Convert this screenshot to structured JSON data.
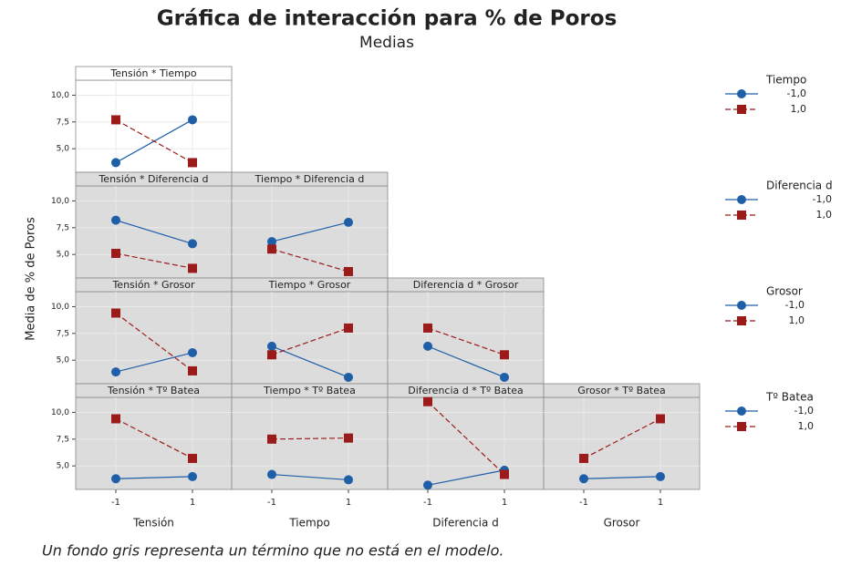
{
  "title": "Gráfica de interacción para % de Poros",
  "subtitle": "Medias",
  "y_label": "Media de % de Poros",
  "footnote": "Un fondo gris representa un término que no está en el modelo.",
  "chart_data": [
    {
      "type": "line",
      "title": "Tensión * Tiempo",
      "background": "#ffffff",
      "legend_title": "Tiempo",
      "categories": [
        "-1",
        "1"
      ],
      "series": [
        {
          "name": "-1,0",
          "color": "#1f5fa8",
          "values": [
            3.7,
            7.7
          ]
        },
        {
          "name": "1,0",
          "color": "#9b1b1b",
          "values": [
            7.7,
            3.7
          ]
        }
      ],
      "ylim": [
        2.8,
        11.4
      ],
      "yticks": [
        {
          "value": 5,
          "label": "5,0"
        },
        {
          "value": 7.5,
          "label": "7,5"
        },
        {
          "value": 10,
          "label": "10,0"
        }
      ]
    },
    {
      "type": "line",
      "title": "Tensión * Diferencia d",
      "background": "#dcdcdc",
      "legend_title": "Diferencia d",
      "categories": [
        "-1",
        "1"
      ],
      "series": [
        {
          "name": "-1,0",
          "color": "#1f5fa8",
          "values": [
            8.2,
            6.0
          ]
        },
        {
          "name": "1,0",
          "color": "#9b1b1b",
          "values": [
            5.1,
            3.7
          ]
        }
      ],
      "ylim": [
        2.8,
        11.4
      ],
      "yticks": [
        {
          "value": 5,
          "label": "5,0"
        },
        {
          "value": 7.5,
          "label": "7,5"
        },
        {
          "value": 10,
          "label": "10,0"
        }
      ]
    },
    {
      "type": "line",
      "title": "Tiempo * Diferencia d",
      "background": "#dcdcdc",
      "categories": [
        "-1",
        "1"
      ],
      "series": [
        {
          "name": "-1,0",
          "color": "#1f5fa8",
          "values": [
            6.2,
            8.0
          ]
        },
        {
          "name": "1,0",
          "color": "#9b1b1b",
          "values": [
            5.5,
            3.4
          ]
        }
      ],
      "ylim": [
        2.8,
        11.4
      ],
      "yticks": [
        {
          "value": 5,
          "label": "5,0"
        },
        {
          "value": 7.5,
          "label": "7,5"
        },
        {
          "value": 10,
          "label": "10,0"
        }
      ]
    },
    {
      "type": "line",
      "title": "Tensión * Grosor",
      "background": "#dcdcdc",
      "legend_title": "Grosor",
      "categories": [
        "-1",
        "1"
      ],
      "series": [
        {
          "name": "-1,0",
          "color": "#1f5fa8",
          "values": [
            3.9,
            5.7
          ]
        },
        {
          "name": "1,0",
          "color": "#9b1b1b",
          "values": [
            9.4,
            4.0
          ]
        }
      ],
      "ylim": [
        2.8,
        11.4
      ],
      "yticks": [
        {
          "value": 5,
          "label": "5,0"
        },
        {
          "value": 7.5,
          "label": "7,5"
        },
        {
          "value": 10,
          "label": "10,0"
        }
      ]
    },
    {
      "type": "line",
      "title": "Tiempo * Grosor",
      "background": "#dcdcdc",
      "categories": [
        "-1",
        "1"
      ],
      "series": [
        {
          "name": "-1,0",
          "color": "#1f5fa8",
          "values": [
            6.3,
            3.4
          ]
        },
        {
          "name": "1,0",
          "color": "#9b1b1b",
          "values": [
            5.5,
            8.0
          ]
        }
      ],
      "ylim": [
        2.8,
        11.4
      ],
      "yticks": [
        {
          "value": 5,
          "label": "5,0"
        },
        {
          "value": 7.5,
          "label": "7,5"
        },
        {
          "value": 10,
          "label": "10,0"
        }
      ]
    },
    {
      "type": "line",
      "title": "Diferencia d * Grosor",
      "background": "#dcdcdc",
      "categories": [
        "-1",
        "1"
      ],
      "series": [
        {
          "name": "-1,0",
          "color": "#1f5fa8",
          "values": [
            6.3,
            3.4
          ]
        },
        {
          "name": "1,0",
          "color": "#9b1b1b",
          "values": [
            8.0,
            5.5
          ]
        }
      ],
      "ylim": [
        2.8,
        11.4
      ],
      "yticks": [
        {
          "value": 5,
          "label": "5,0"
        },
        {
          "value": 7.5,
          "label": "7,5"
        },
        {
          "value": 10,
          "label": "10,0"
        }
      ]
    },
    {
      "type": "line",
      "title": "Tensión * Tº Batea",
      "background": "#dcdcdc",
      "legend_title": "Tº Batea",
      "xlabel": "Tensión",
      "categories": [
        "-1",
        "1"
      ],
      "series": [
        {
          "name": "-1,0",
          "color": "#1f5fa8",
          "values": [
            3.8,
            4.0
          ]
        },
        {
          "name": "1,0",
          "color": "#9b1b1b",
          "values": [
            9.4,
            5.7
          ]
        }
      ],
      "ylim": [
        2.8,
        11.4
      ],
      "yticks": [
        {
          "value": 5,
          "label": "5,0"
        },
        {
          "value": 7.5,
          "label": "7,5"
        },
        {
          "value": 10,
          "label": "10,0"
        }
      ]
    },
    {
      "type": "line",
      "title": "Tiempo * Tº Batea",
      "background": "#dcdcdc",
      "xlabel": "Tiempo",
      "categories": [
        "-1",
        "1"
      ],
      "series": [
        {
          "name": "-1,0",
          "color": "#1f5fa8",
          "values": [
            4.2,
            3.7
          ]
        },
        {
          "name": "1,0",
          "color": "#9b1b1b",
          "values": [
            7.5,
            7.6
          ]
        }
      ],
      "ylim": [
        2.8,
        11.4
      ],
      "yticks": [
        {
          "value": 5,
          "label": "5,0"
        },
        {
          "value": 7.5,
          "label": "7,5"
        },
        {
          "value": 10,
          "label": "10,0"
        }
      ]
    },
    {
      "type": "line",
      "title": "Diferencia d * Tº Batea",
      "background": "#dcdcdc",
      "xlabel": "Diferencia d",
      "categories": [
        "-1",
        "1"
      ],
      "series": [
        {
          "name": "-1,0",
          "color": "#1f5fa8",
          "values": [
            3.2,
            4.6
          ]
        },
        {
          "name": "1,0",
          "color": "#9b1b1b",
          "values": [
            11.0,
            4.2
          ]
        }
      ],
      "ylim": [
        2.8,
        11.4
      ],
      "yticks": [
        {
          "value": 5,
          "label": "5,0"
        },
        {
          "value": 7.5,
          "label": "7,5"
        },
        {
          "value": 10,
          "label": "10,0"
        }
      ]
    },
    {
      "type": "line",
      "title": "Grosor * Tº Batea",
      "background": "#dcdcdc",
      "xlabel": "Grosor",
      "categories": [
        "-1",
        "1"
      ],
      "series": [
        {
          "name": "-1,0",
          "color": "#1f5fa8",
          "values": [
            3.8,
            4.0
          ]
        },
        {
          "name": "1,0",
          "color": "#9b1b1b",
          "values": [
            5.7,
            9.4
          ]
        }
      ],
      "ylim": [
        2.8,
        11.4
      ],
      "yticks": [
        {
          "value": 5,
          "label": "5,0"
        },
        {
          "value": 7.5,
          "label": "7,5"
        },
        {
          "value": 10,
          "label": "10,0"
        }
      ]
    }
  ]
}
